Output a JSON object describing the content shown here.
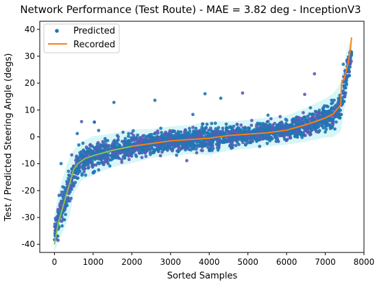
{
  "chart_data": {
    "type": "scatter",
    "title": "Network Performance (Test Route) - MAE = 3.82 deg - InceptionV3",
    "xlabel": "Sorted Samples",
    "ylabel": "Test / Predicted Steering Angle (degs)",
    "xlim": [
      -380,
      8000
    ],
    "ylim": [
      -43,
      43
    ],
    "x_ticks": [
      0,
      1000,
      2000,
      3000,
      4000,
      5000,
      6000,
      7000,
      8000
    ],
    "y_ticks": [
      -40,
      -30,
      -20,
      -10,
      0,
      10,
      20,
      30,
      40
    ],
    "grid": false,
    "legend_position": "top-left",
    "colors": {
      "predicted": "#1f77b4",
      "predicted_overlap": "#5b5bb8",
      "recorded": "#ff7f0e",
      "recorded_left": "#8bc34a",
      "band": "#d8f6f6"
    },
    "series": [
      {
        "name": "Predicted",
        "style": "points",
        "spread_note": "dense cloud around the recorded curve",
        "x": [
          0,
          100,
          200,
          300,
          400,
          500,
          700,
          1000,
          1500,
          2000,
          2500,
          3000,
          3500,
          4000,
          4500,
          5000,
          5500,
          6000,
          6500,
          7000,
          7200,
          7400,
          7500,
          7600,
          7680
        ],
        "y": [
          -36,
          -30,
          -26,
          -22,
          -18,
          -13,
          -9,
          -7,
          -5,
          -3.5,
          -2.5,
          -1.5,
          -1,
          -0.5,
          0.3,
          1,
          1.8,
          2.5,
          4.5,
          7,
          8,
          11,
          20,
          27,
          31
        ],
        "y_spread": [
          8,
          10,
          11,
          12,
          12,
          9,
          8,
          8,
          7,
          7,
          6,
          6,
          6,
          7,
          6,
          6,
          6,
          6,
          7,
          8,
          9,
          10,
          10,
          8,
          6
        ]
      },
      {
        "name": "Recorded",
        "style": "line",
        "x": [
          0,
          50,
          100,
          200,
          300,
          400,
          500,
          600,
          800,
          1000,
          1500,
          2000,
          2500,
          3000,
          3500,
          4000,
          4500,
          5000,
          5500,
          6000,
          6500,
          7000,
          7200,
          7350,
          7400,
          7420,
          7500,
          7550,
          7600,
          7650,
          7680
        ],
        "y": [
          -40,
          -36,
          -32,
          -27,
          -22,
          -17,
          -12,
          -10,
          -8,
          -7,
          -5,
          -3.5,
          -2.5,
          -1.5,
          -1,
          -0.5,
          0.5,
          1,
          1.5,
          2.5,
          4.5,
          7,
          8.5,
          11,
          12,
          20,
          22,
          25,
          28,
          33,
          37
        ]
      }
    ]
  }
}
